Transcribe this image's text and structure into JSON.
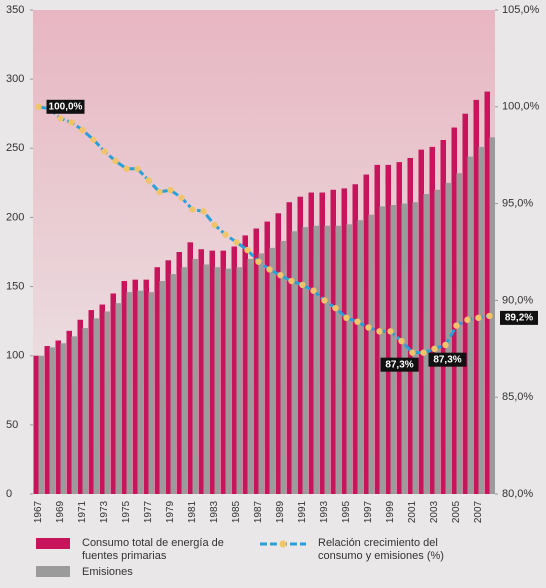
{
  "chart_data": {
    "type": "bar",
    "categories": [
      "1967",
      null,
      "1969",
      null,
      "1971",
      null,
      "1973",
      null,
      "1975",
      null,
      "1977",
      null,
      "1979",
      null,
      "1981",
      null,
      "1983",
      null,
      "1985",
      null,
      "1987",
      null,
      "1989",
      null,
      "1991",
      null,
      "1993",
      null,
      "1995",
      null,
      "1997",
      null,
      "1999",
      null,
      "2001",
      null,
      "2003",
      null,
      "2005",
      null,
      "2007",
      null
    ],
    "series": [
      {
        "name": "Consumo total de energía de fuentes primarias",
        "color": "#c8145a",
        "values": [
          100,
          107,
          111,
          118,
          126,
          133,
          137,
          145,
          154,
          155,
          155,
          164,
          169,
          175,
          182,
          177,
          176,
          176,
          179,
          187,
          192,
          197,
          203,
          211,
          215,
          218,
          218,
          220,
          221,
          224,
          231,
          238,
          238,
          240,
          243,
          249,
          251,
          256,
          265,
          275,
          285,
          291
        ]
      },
      {
        "name": "Emisiones",
        "color": "#9b9b9b",
        "values": [
          100,
          106,
          109,
          114,
          120,
          127,
          132,
          138,
          146,
          147,
          146,
          154,
          159,
          164,
          170,
          166,
          164,
          163,
          164,
          170,
          174,
          178,
          183,
          190,
          193,
          194,
          194,
          194,
          195,
          198,
          202,
          208,
          209,
          210,
          211,
          217,
          220,
          225,
          232,
          244,
          251,
          258
        ]
      },
      {
        "name": "Relación crecimiento del consumo y emisiones (%)",
        "type": "line",
        "axis": "y2",
        "color": "#2a9fd8",
        "marker_color": "#f2c46a",
        "values": [
          100.0,
          99.9,
          99.4,
          99.2,
          98.8,
          98.3,
          97.7,
          97.2,
          96.8,
          96.8,
          96.2,
          95.6,
          95.7,
          95.3,
          94.7,
          94.6,
          93.9,
          93.4,
          93.0,
          92.6,
          92.0,
          91.6,
          91.3,
          91.0,
          90.8,
          90.5,
          90.0,
          89.6,
          89.1,
          88.9,
          88.6,
          88.4,
          88.4,
          87.9,
          87.3,
          87.3,
          87.5,
          87.7,
          88.7,
          89.0,
          89.1,
          89.2
        ],
        "value_labels": [
          "100,0%",
          null,
          null,
          null,
          null,
          null,
          null,
          null,
          null,
          null,
          null,
          null,
          null,
          null,
          null,
          null,
          null,
          null,
          null,
          null,
          null,
          null,
          null,
          null,
          null,
          null,
          null,
          null,
          null,
          null,
          null,
          null,
          null,
          null,
          "87,3%",
          "87,3%",
          null,
          null,
          null,
          null,
          null,
          "89,2%"
        ]
      }
    ],
    "ylim": [
      0,
      350
    ],
    "yticks": [
      0,
      50,
      100,
      150,
      200,
      250,
      300,
      350
    ],
    "y2lim": [
      80,
      105
    ],
    "y2ticks": [
      {
        "value": 80,
        "label": "80,0%"
      },
      {
        "value": 85,
        "label": "85,0%"
      },
      {
        "value": 90,
        "label": "90,0%"
      },
      {
        "value": 95,
        "label": "95,0%"
      },
      {
        "value": 100,
        "label": "100,0%"
      },
      {
        "value": 105,
        "label": "105,0%"
      }
    ]
  }
}
